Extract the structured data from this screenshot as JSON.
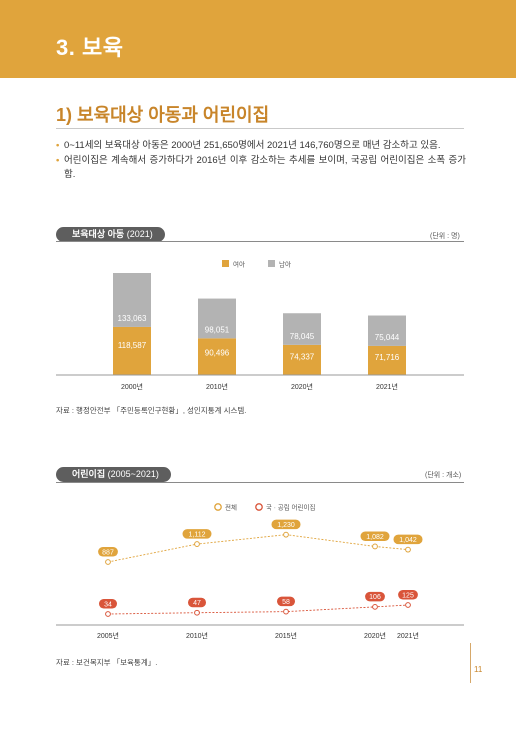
{
  "header": {
    "title": "3. 보육"
  },
  "section": {
    "title": "1) 보육대상 아동과 어린이집"
  },
  "bullets": [
    "0~11세의 보육대상 아동은 2000년 251,650명에서 2021년 146,760명으로 매년 감소하고 있음.",
    "어린이집은 계속해서 증가하다가 2016년 이후 감소하는 추세를 보이며, 국공립 어린이집은 소폭 증가함."
  ],
  "chart1": {
    "tag_main": "보육대상 아동",
    "tag_sub": "(2021)",
    "unit": "(단위 : 명)",
    "source": "자료 : 행정안전부 「주민등록인구현황」, 성인지통계 시스템."
  },
  "chart2": {
    "tag_main": "어린이집",
    "tag_sub": "(2005~2021)",
    "unit": "(단위 : 개소)",
    "source": "자료 : 보건복지부 「보육통계」."
  },
  "page": {
    "number": "11"
  },
  "colors": {
    "accent": "#e0a43c",
    "gray_bar": "#b3b3b3",
    "red_line": "#d9553a"
  },
  "chart_data": [
    {
      "type": "bar",
      "stacked": true,
      "categories": [
        "2000년",
        "2010년",
        "2020년",
        "2021년"
      ],
      "series": [
        {
          "name": "여아",
          "values": [
            118587,
            90496,
            74337,
            71716
          ],
          "color": "#e0a43c"
        },
        {
          "name": "남아",
          "values": [
            133063,
            98051,
            78045,
            75044
          ],
          "color": "#b3b3b3"
        }
      ],
      "value_labels": {
        "여아": [
          "118,587",
          "90,496",
          "74,337",
          "71,716"
        ],
        "남아": [
          "133,063",
          "98,051",
          "78,045",
          "75,044"
        ]
      },
      "legend": "top-center"
    },
    {
      "type": "line",
      "x": [
        "2005년",
        "2010년",
        "2015년",
        "2020년",
        "2021년"
      ],
      "x_values": [
        2005,
        2010,
        2015,
        2020,
        2021
      ],
      "series": [
        {
          "name": "전체",
          "values": [
            887,
            1112,
            1230,
            1082,
            1042
          ],
          "labels": [
            "887",
            "1,112",
            "1,230",
            "1,082",
            "1,042"
          ],
          "color": "#e0a43c"
        },
        {
          "name": "국 · 공립 어린이집",
          "values": [
            34,
            47,
            58,
            106,
            125
          ],
          "labels": [
            "34",
            "47",
            "58",
            "106",
            "125"
          ],
          "color": "#d9553a"
        }
      ],
      "legend": "top-center"
    }
  ]
}
